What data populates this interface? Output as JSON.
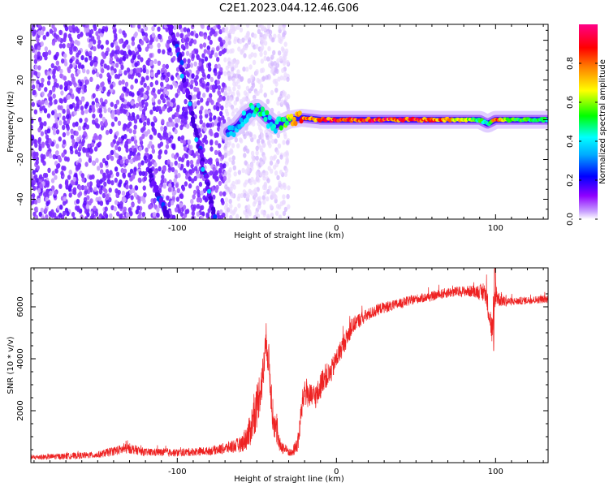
{
  "title": "C2E1.2023.044.12.46.G06",
  "colors": {
    "snr_line": "#ee2222",
    "trace": "#4400dd",
    "background_dots": "#7a28ff",
    "frame": "#000000"
  },
  "chart_data": [
    {
      "type": "heatmap",
      "xlabel": "Height of straight line (km)",
      "ylabel": "Frequency (Hz)",
      "xlim": [
        -192,
        133
      ],
      "ylim": [
        -50,
        48
      ],
      "x_ticks": [
        -100,
        0,
        100
      ],
      "x_tick_labels": [
        "-100",
        "0",
        "100"
      ],
      "y_ticks": [
        -40,
        -20,
        0,
        20,
        40
      ],
      "y_tick_labels": [
        "-40",
        "-20",
        "0",
        "20",
        "40"
      ],
      "grid": false,
      "colorbar": {
        "label": "Normalized spectral amplitude",
        "range": [
          0,
          1
        ],
        "ticks": [
          0.0,
          0.2,
          0.4,
          0.6,
          0.8
        ],
        "tick_labels": [
          "0.0",
          "0.2",
          "0.4",
          "0.6",
          "0.8"
        ],
        "colormap": [
          "#ffffff",
          "#8f00ff",
          "#0000ff",
          "#00ffff",
          "#00ff00",
          "#ffff00",
          "#ff8000",
          "#ff0000",
          "#ff0088"
        ]
      },
      "ridge": {
        "x": [
          -68,
          -62,
          -56,
          -50,
          -44,
          -38,
          -30,
          -22,
          -10,
          0,
          20,
          40,
          60,
          80,
          90,
          95,
          100,
          110,
          120,
          133
        ],
        "y": [
          -6,
          -3,
          3,
          6,
          1,
          -3,
          0,
          1,
          0,
          0,
          0,
          0,
          0,
          0,
          0,
          -2,
          0,
          0,
          0,
          0
        ],
        "peak_amplitude": [
          0.35,
          0.4,
          0.45,
          0.5,
          0.5,
          0.45,
          0.65,
          0.9,
          0.9,
          0.95,
          0.95,
          0.95,
          0.9,
          0.75,
          0.55,
          0.5,
          0.9,
          0.6,
          0.55,
          0.5
        ]
      },
      "diagonal_traces": [
        {
          "x": [
            -105,
            -98,
            -90,
            -82,
            -76
          ],
          "y": [
            48,
            30,
            0,
            -30,
            -50
          ]
        },
        {
          "x": [
            -118,
            -112,
            -106
          ],
          "y": [
            -25,
            -38,
            -48
          ]
        }
      ]
    },
    {
      "type": "line",
      "xlabel": "Height of straight line (km)",
      "ylabel": "SNR (10 * v/v)",
      "xlim": [
        -192,
        133
      ],
      "ylim": [
        0,
        7500
      ],
      "x_ticks": [
        -100,
        0,
        100
      ],
      "x_tick_labels": [
        "-100",
        "0",
        "100"
      ],
      "y_ticks": [
        2000,
        4000,
        6000
      ],
      "y_tick_labels": [
        "2000",
        "4000",
        "6000"
      ],
      "grid": false,
      "series": [
        {
          "x": [
            -192,
            -170,
            -150,
            -140,
            -130,
            -120,
            -110,
            -100,
            -90,
            -80,
            -70,
            -60,
            -55,
            -50,
            -46,
            -44,
            -42,
            -40,
            -36,
            -32,
            -28,
            -24,
            -22,
            -20,
            -16,
            -12,
            -8,
            -4,
            0,
            4,
            8,
            12,
            20,
            28,
            36,
            44,
            50,
            60,
            70,
            80,
            88,
            94,
            98,
            100,
            102,
            106,
            110,
            120,
            133
          ],
          "y": [
            200,
            250,
            300,
            450,
            550,
            400,
            400,
            380,
            420,
            450,
            550,
            700,
            1100,
            2200,
            3400,
            4800,
            3500,
            1800,
            700,
            500,
            350,
            800,
            2000,
            2800,
            2500,
            2600,
            3300,
            3400,
            4000,
            4500,
            5000,
            5400,
            5700,
            5950,
            6050,
            6200,
            6300,
            6400,
            6550,
            6600,
            6600,
            6500,
            5000,
            6600,
            6300,
            6200,
            6200,
            6250,
            6300
          ],
          "noise": [
            100,
            120,
            130,
            180,
            200,
            150,
            150,
            150,
            160,
            160,
            220,
            300,
            600,
            900,
            800,
            700,
            800,
            700,
            300,
            200,
            150,
            400,
            500,
            600,
            500,
            500,
            500,
            450,
            400,
            400,
            350,
            300,
            250,
            220,
            200,
            200,
            180,
            180,
            200,
            200,
            250,
            400,
            600,
            500,
            300,
            200,
            150,
            150,
            150
          ]
        }
      ]
    }
  ]
}
